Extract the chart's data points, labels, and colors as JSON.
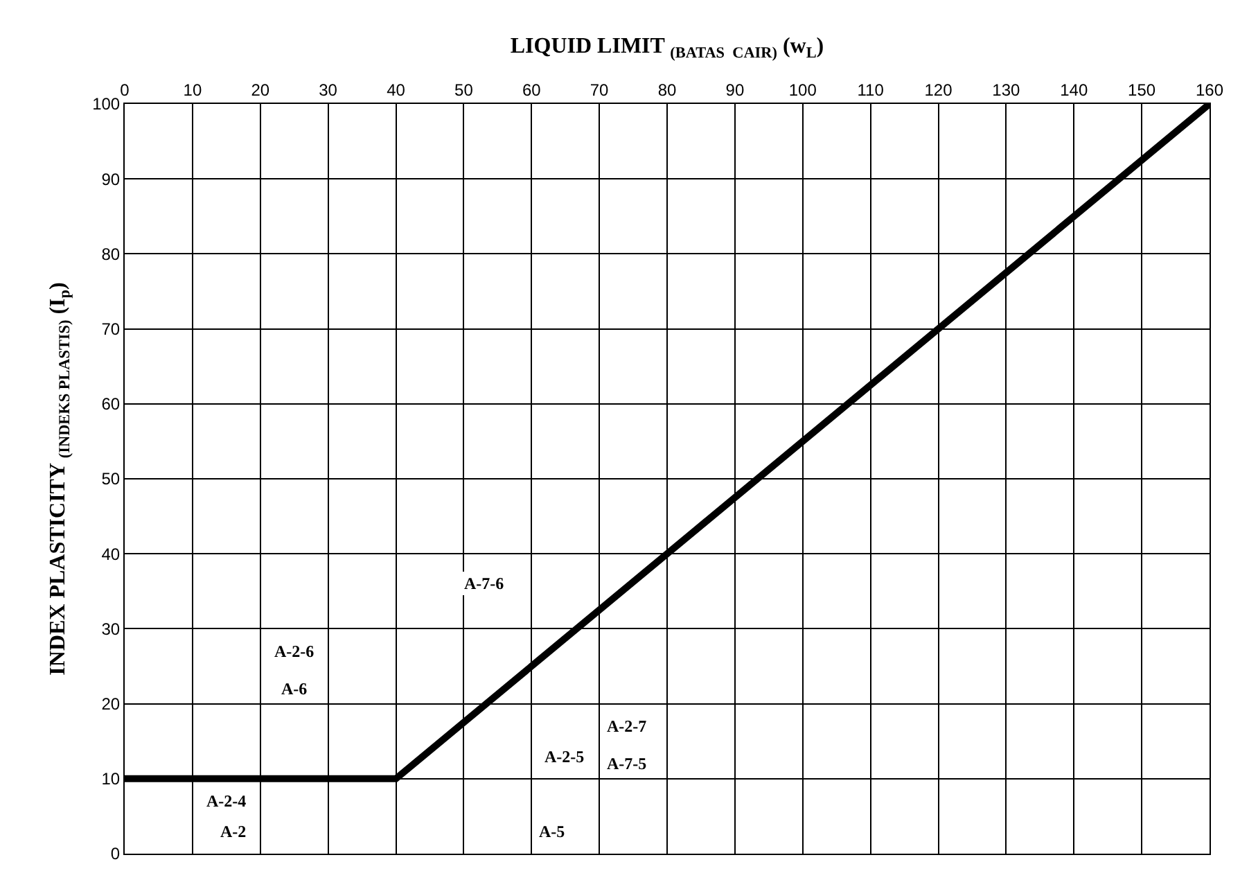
{
  "chart_data": {
    "type": "line",
    "xlabel": "LIQUID LIMIT $_{(BATAS  CAIR)}$ (w$_{L}$)",
    "ylabel": "INDEX PLASTICITY $_{(INDEKS PLASTIS)}$ (I$_{p}$)",
    "x": [
      0,
      40,
      160
    ],
    "series": [
      {
        "color": "#000000",
        "values": [
          10,
          10,
          100
        ]
      }
    ],
    "xlim": [
      0,
      160
    ],
    "xticks": [
      0,
      10,
      20,
      30,
      40,
      50,
      60,
      70,
      80,
      90,
      100,
      110,
      120,
      130,
      140,
      150,
      160
    ],
    "ylim": [
      0,
      100
    ],
    "yticks": [
      0,
      10,
      20,
      30,
      40,
      50,
      60,
      70,
      80,
      90,
      100
    ],
    "grid": true,
    "marker": "none",
    "line_style": "solid",
    "annotations": [
      "A-7-6",
      "A-2-6",
      "A-6",
      "A-2-4",
      "A-2",
      "A-2-5",
      "A-5",
      "A-2-7",
      "A-7-5"
    ]
  }
}
